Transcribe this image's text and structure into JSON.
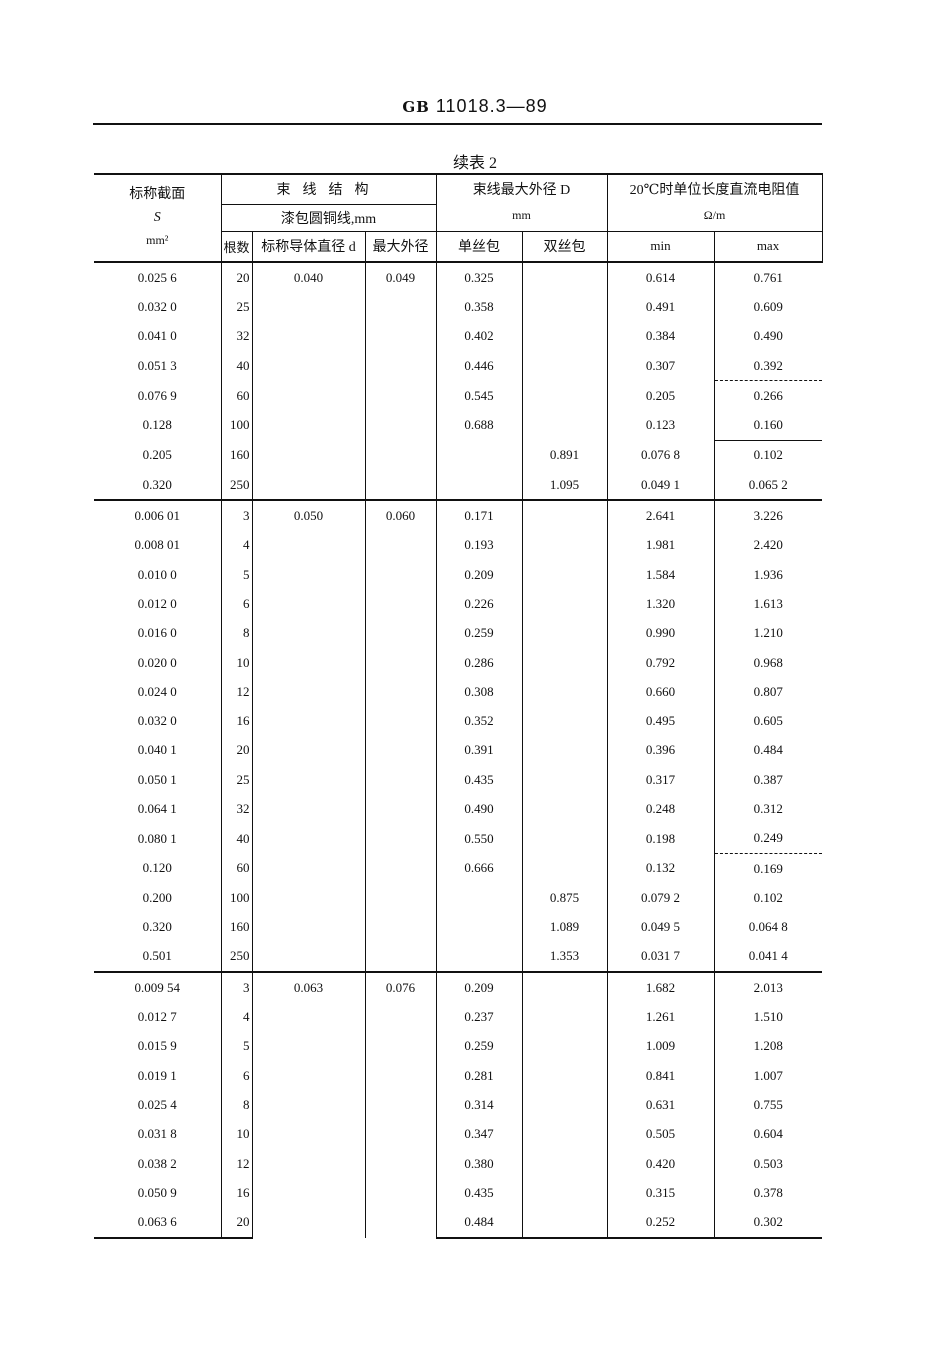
{
  "header": {
    "standard_prefix": "GB",
    "standard_number": "11018.3—89"
  },
  "caption": "续表 2",
  "columns": {
    "section": "标称截面",
    "section_symbol": "S",
    "section_unit": "mm²",
    "structure": "束线结构",
    "structure_sub": "漆包圆铜线,mm",
    "count": "根数",
    "nominal_d": "标称导体直径 d",
    "max_od": "最大外径",
    "bundle_od": "束线最大外径 D",
    "bundle_od_unit": "mm",
    "single": "单丝包",
    "double": "双丝包",
    "resistance": "20℃时单位长度直流电阻值",
    "resistance_unit": "Ω/m",
    "min": "min",
    "max": "max"
  },
  "groups": [
    {
      "d": "0.040",
      "max_od": "0.049",
      "rows": [
        [
          "0.025 6",
          "20",
          "0.325",
          "",
          "0.614",
          "0.761"
        ],
        [
          "0.032 0",
          "25",
          "0.358",
          "",
          "0.491",
          "0.609"
        ],
        [
          "0.041 0",
          "32",
          "0.402",
          "",
          "0.384",
          "0.490"
        ],
        [
          "0.051 3",
          "40",
          "0.446",
          "",
          "0.307",
          "0.392"
        ],
        [
          "0.076 9",
          "60",
          "0.545",
          "",
          "0.205",
          "0.266"
        ],
        [
          "0.128",
          "100",
          "0.688",
          "",
          "0.123",
          "0.160"
        ],
        [
          "0.205",
          "160",
          "",
          "0.891",
          "0.076 8",
          "0.102"
        ],
        [
          "0.320",
          "250",
          "",
          "1.095",
          "0.049 1",
          "0.065 2"
        ]
      ]
    },
    {
      "d": "0.050",
      "max_od": "0.060",
      "rows": [
        [
          "0.006 01",
          "3",
          "0.171",
          "",
          "2.641",
          "3.226"
        ],
        [
          "0.008 01",
          "4",
          "0.193",
          "",
          "1.981",
          "2.420"
        ],
        [
          "0.010 0",
          "5",
          "0.209",
          "",
          "1.584",
          "1.936"
        ],
        [
          "0.012 0",
          "6",
          "0.226",
          "",
          "1.320",
          "1.613"
        ],
        [
          "0.016 0",
          "8",
          "0.259",
          "",
          "0.990",
          "1.210"
        ],
        [
          "0.020 0",
          "10",
          "0.286",
          "",
          "0.792",
          "0.968"
        ],
        [
          "0.024 0",
          "12",
          "0.308",
          "",
          "0.660",
          "0.807"
        ],
        [
          "0.032 0",
          "16",
          "0.352",
          "",
          "0.495",
          "0.605"
        ],
        [
          "0.040 1",
          "20",
          "0.391",
          "",
          "0.396",
          "0.484"
        ],
        [
          "0.050 1",
          "25",
          "0.435",
          "",
          "0.317",
          "0.387"
        ],
        [
          "0.064 1",
          "32",
          "0.490",
          "",
          "0.248",
          "0.312"
        ],
        [
          "0.080 1",
          "40",
          "0.550",
          "",
          "0.198",
          "0.249"
        ],
        [
          "0.120",
          "60",
          "0.666",
          "",
          "0.132",
          "0.169"
        ],
        [
          "0.200",
          "100",
          "",
          "0.875",
          "0.079 2",
          "0.102"
        ],
        [
          "0.320",
          "160",
          "",
          "1.089",
          "0.049 5",
          "0.064 8"
        ],
        [
          "0.501",
          "250",
          "",
          "1.353",
          "0.031 7",
          "0.041 4"
        ]
      ]
    },
    {
      "d": "0.063",
      "max_od": "0.076",
      "rows": [
        [
          "0.009 54",
          "3",
          "0.209",
          "",
          "1.682",
          "2.013"
        ],
        [
          "0.012 7",
          "4",
          "0.237",
          "",
          "1.261",
          "1.510"
        ],
        [
          "0.015 9",
          "5",
          "0.259",
          "",
          "1.009",
          "1.208"
        ],
        [
          "0.019 1",
          "6",
          "0.281",
          "",
          "0.841",
          "1.007"
        ],
        [
          "0.025 4",
          "8",
          "0.314",
          "",
          "0.631",
          "0.755"
        ],
        [
          "0.031 8",
          "10",
          "0.347",
          "",
          "0.505",
          "0.604"
        ],
        [
          "0.038 2",
          "12",
          "0.380",
          "",
          "0.420",
          "0.503"
        ],
        [
          "0.050 9",
          "16",
          "0.435",
          "",
          "0.315",
          "0.378"
        ],
        [
          "0.063 6",
          "20",
          "0.484",
          "",
          "0.252",
          "0.302"
        ]
      ]
    }
  ]
}
